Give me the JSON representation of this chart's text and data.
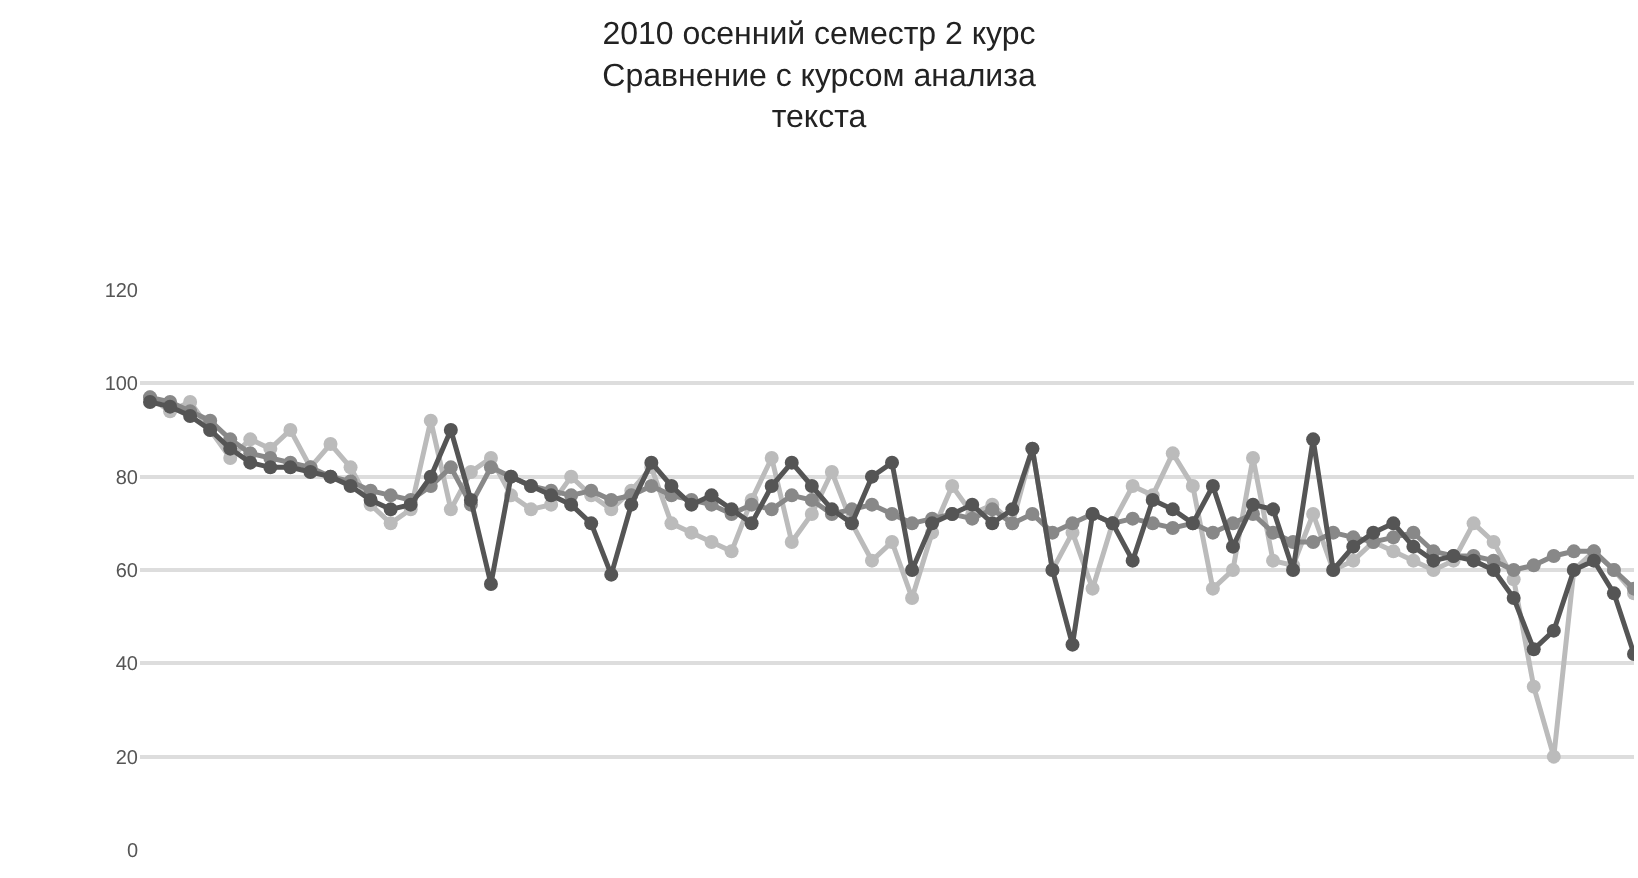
{
  "chart_data": {
    "type": "line",
    "title": "2010 осенний семестр 2 курс\nСравнение с курсом анализа\nтекста",
    "categories": [
      null,
      null,
      null,
      null,
      null,
      null,
      null,
      null,
      null,
      null,
      null,
      null,
      null,
      null,
      null,
      null,
      null,
      null,
      null,
      null,
      null,
      null,
      null,
      null,
      null,
      null,
      null,
      null,
      null,
      null,
      null,
      null,
      null,
      null,
      null,
      null,
      null,
      null,
      null,
      null,
      null,
      null,
      null,
      null,
      null,
      null,
      null,
      null,
      null,
      null,
      null,
      null,
      null,
      null,
      null,
      null,
      null,
      null,
      null,
      null,
      null,
      null,
      null,
      null,
      null,
      null,
      null,
      null,
      null,
      null,
      null,
      null,
      null,
      null,
      null
    ],
    "series": [
      {
        "color": "#bbbbbb",
        "values": [
          97,
          94,
          96,
          90,
          84,
          88,
          86,
          90,
          82,
          87,
          82,
          74,
          70,
          73,
          92,
          73,
          81,
          84,
          76,
          73,
          74,
          80,
          76,
          73,
          77,
          82,
          70,
          68,
          66,
          64,
          75,
          84,
          66,
          72,
          81,
          70,
          62,
          66,
          54,
          68,
          78,
          72,
          74,
          70,
          86,
          60,
          68,
          56,
          70,
          78,
          76,
          85,
          78,
          56,
          60,
          84,
          62,
          61,
          72,
          60,
          62,
          66,
          64,
          62,
          60,
          62,
          70,
          66,
          58,
          35,
          20,
          60,
          64,
          60,
          55
        ]
      },
      {
        "color": "#888888",
        "values": [
          97,
          96,
          94,
          92,
          88,
          85,
          84,
          83,
          82,
          80,
          79,
          77,
          76,
          75,
          78,
          82,
          74,
          82,
          80,
          78,
          77,
          76,
          77,
          75,
          76,
          78,
          76,
          75,
          74,
          72,
          74,
          73,
          76,
          75,
          72,
          73,
          74,
          72,
          70,
          71,
          72,
          71,
          73,
          70,
          72,
          68,
          70,
          72,
          70,
          71,
          70,
          69,
          70,
          68,
          70,
          72,
          68,
          66,
          66,
          68,
          67,
          66,
          67,
          68,
          64,
          63,
          63,
          62,
          60,
          61,
          63,
          64,
          64,
          60,
          56
        ]
      },
      {
        "color": "#555555",
        "values": [
          96,
          95,
          93,
          90,
          86,
          83,
          82,
          82,
          81,
          80,
          78,
          75,
          73,
          74,
          80,
          90,
          75,
          57,
          80,
          78,
          76,
          74,
          70,
          59,
          74,
          83,
          78,
          74,
          76,
          73,
          70,
          78,
          83,
          78,
          73,
          70,
          80,
          83,
          60,
          70,
          72,
          74,
          70,
          73,
          86,
          60,
          44,
          72,
          70,
          62,
          75,
          73,
          70,
          78,
          65,
          74,
          73,
          60,
          88,
          60,
          65,
          68,
          70,
          65,
          62,
          63,
          62,
          60,
          54,
          43,
          47,
          60,
          62,
          55,
          42
        ]
      }
    ],
    "ylim": [
      0,
      120
    ],
    "yticks": [
      0,
      20,
      40,
      60,
      80,
      100,
      120
    ],
    "grid": "y",
    "marker": "circle",
    "line_style": "solid",
    "tick_labels": "y"
  }
}
